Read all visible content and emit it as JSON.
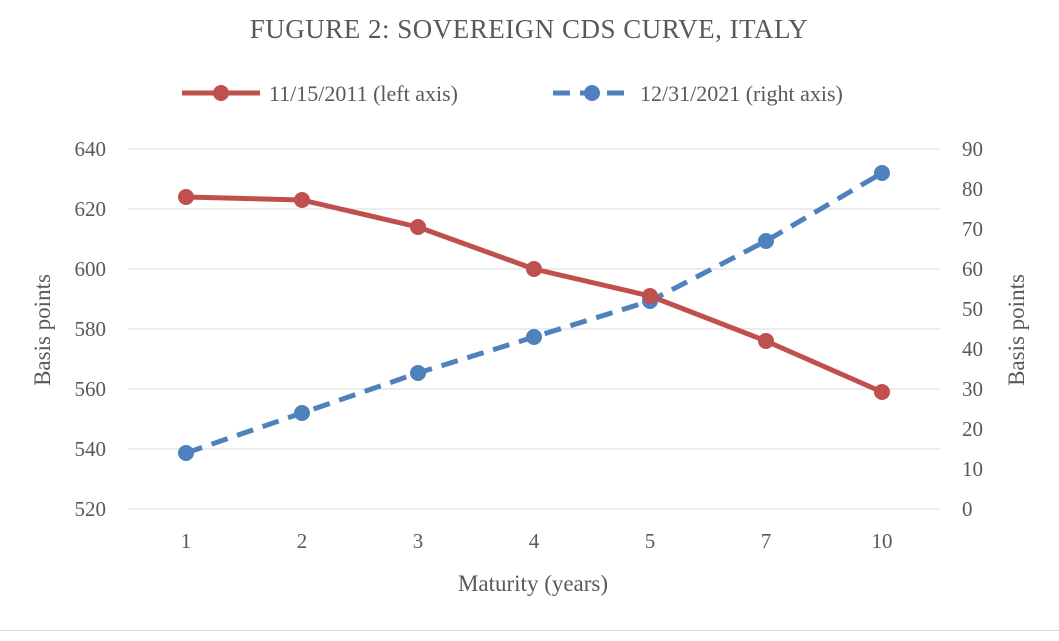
{
  "chart_data": {
    "type": "line",
    "title": "FUGURE 2:  SOVEREIGN CDS CURVE, ITALY",
    "categories": [
      "1",
      "2",
      "3",
      "4",
      "5",
      "7",
      "10"
    ],
    "xlabel": "Maturity (years)",
    "ylabel_left": "Basis points",
    "ylabel_right": "Basis points",
    "ylim_left": [
      520,
      640
    ],
    "yticks_left": [
      "520",
      "540",
      "560",
      "580",
      "600",
      "620",
      "640"
    ],
    "ylim_right": [
      0,
      90
    ],
    "yticks_right": [
      "0",
      "10",
      "20",
      "30",
      "40",
      "50",
      "60",
      "70",
      "80",
      "90"
    ],
    "grid": true,
    "legend_position": "top",
    "series": [
      {
        "name": "11/15/2011 (left axis)",
        "axis": "left",
        "style": "solid",
        "color": "#c0504d",
        "values": [
          624,
          623,
          614,
          600,
          591,
          576,
          559
        ]
      },
      {
        "name": "12/31/2021 (right axis)",
        "axis": "right",
        "style": "dashed",
        "color": "#4f81bd",
        "values": [
          14,
          24,
          34,
          43,
          52,
          67,
          84
        ]
      }
    ]
  }
}
